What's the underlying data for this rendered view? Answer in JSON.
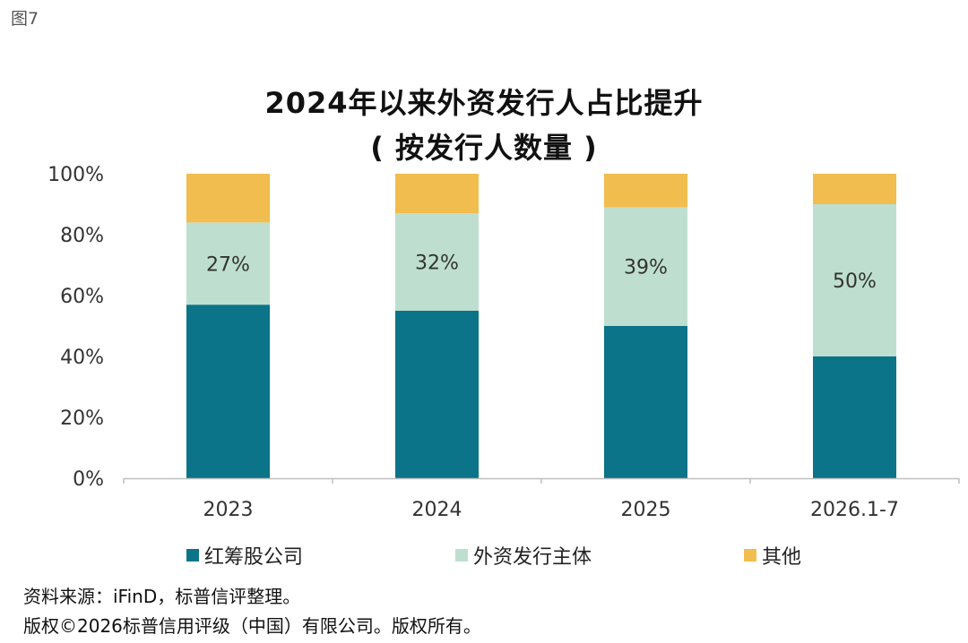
{
  "figure_label": "图7",
  "chart_data": {
    "type": "bar",
    "stacked": true,
    "percent": true,
    "title_line1": "2024年以来外资发行人占比提升",
    "title_line2": "( 按发行人数量 )",
    "categories": [
      "2023",
      "2024",
      "2025",
      "2026.1-7"
    ],
    "series": [
      {
        "name": "红筹股公司",
        "color": "#0b7488",
        "values": [
          57,
          55,
          50,
          40
        ]
      },
      {
        "name": "外资发行主体",
        "color": "#bedfcf",
        "values": [
          27,
          32,
          39,
          50
        ],
        "labels": [
          "27%",
          "32%",
          "39%",
          "50%"
        ]
      },
      {
        "name": "其他",
        "color": "#f1bd4e",
        "values": [
          16,
          13,
          11,
          10
        ]
      }
    ],
    "ylim": [
      0,
      100
    ],
    "yticks": [
      "0%",
      "20%",
      "40%",
      "60%",
      "80%",
      "100%"
    ],
    "grid": false,
    "legend_position": "bottom"
  },
  "footer": {
    "source": "资料来源：iFinD，标普信评整理。",
    "copyright": "版权©2026标普信用评级（中国）有限公司。版权所有。"
  }
}
